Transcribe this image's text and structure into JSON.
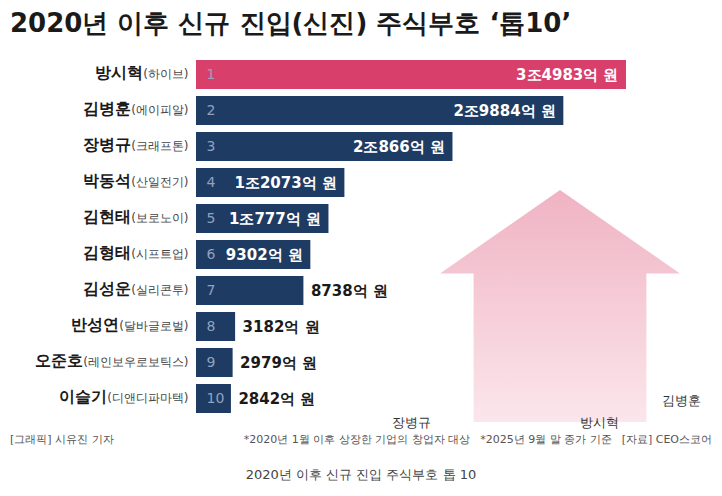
{
  "chart_data": {
    "type": "bar",
    "title": "2020년 이후 신규 진입(신진) 주식부호 ‘톱10’",
    "orientation": "horizontal",
    "categories": [
      "방시혁(하이브)",
      "김병훈(에이피알)",
      "장병규(크래프톤)",
      "박동석(산일전기)",
      "김현태(보로노이)",
      "김형태(시프트업)",
      "김성운(실리콘투)",
      "반성연(달바글로벌)",
      "오준호(레인보우로보틱스)",
      "이슬기(디앤디파마텍)"
    ],
    "values": [
      34983,
      29884,
      20866,
      12073,
      10777,
      9302,
      8738,
      3182,
      2979,
      2842
    ],
    "value_labels": [
      "3조4983억 원",
      "2조9884억 원",
      "2조866억 원",
      "1조2073억 원",
      "1조777억 원",
      "9302억 원",
      "8738억 원",
      "3182억 원",
      "2979억 원",
      "2842억 원"
    ],
    "ranks": [
      1,
      2,
      3,
      4,
      5,
      6,
      7,
      8,
      9,
      10
    ],
    "colors": [
      "#d8406b",
      "#1e3c63",
      "#1e3c63",
      "#1e3c63",
      "#1e3c63",
      "#1e3c63",
      "#1e3c63",
      "#1e3c63",
      "#1e3c63",
      "#1e3c63"
    ],
    "xlim": [
      0,
      34983
    ],
    "data_labels": true,
    "tick_labels": "y",
    "grid": false,
    "annotations": [
      "장병규",
      "방시혁",
      "김병훈"
    ],
    "notes": [
      "[그래픽] 시유진 기자",
      "*2020년 1월 이후 상장한 기업의 창업자 대상",
      "*2025년 9월 말 종가 기준",
      "[자료] CEO스코어"
    ],
    "caption": "2020년 이후 신규 진입 주식부호 톱 10"
  }
}
